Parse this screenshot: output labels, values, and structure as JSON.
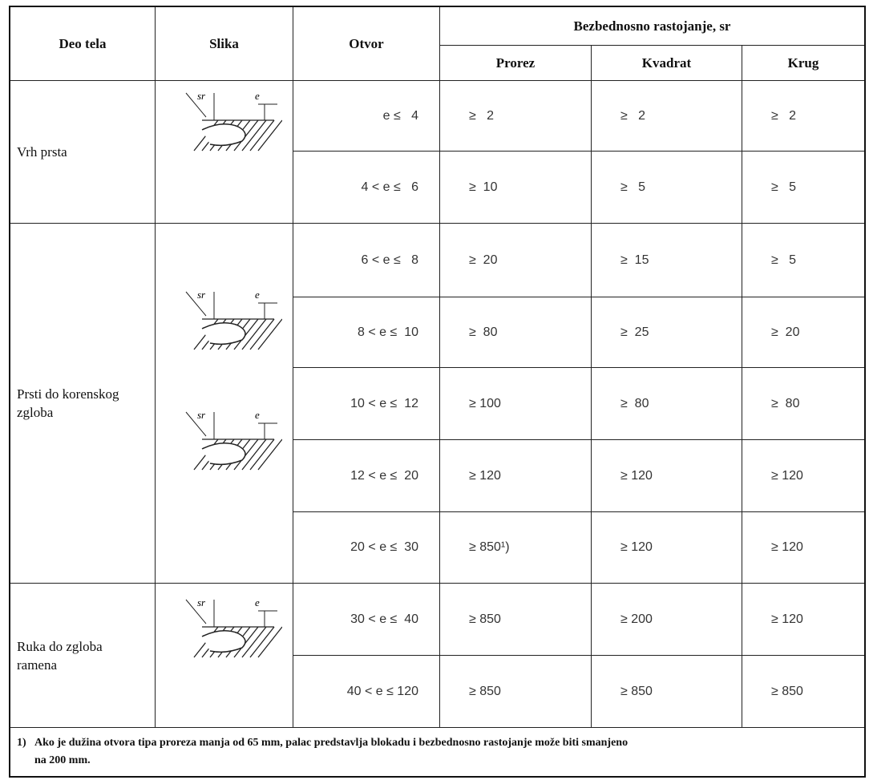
{
  "table": {
    "header": {
      "columns": [
        "Deo tela",
        "Slika",
        "Otvor",
        "Prorez",
        "Kvadrat",
        "Krug"
      ],
      "group": "Bezbednosno rastojanje, sr"
    },
    "figure_labels": {
      "distance": "sr",
      "opening": "e"
    },
    "groups": [
      {
        "body_part": "Vrh prsta",
        "rows": [
          [
            "e ≤   4",
            "≥   2",
            "≥   2",
            "≥   2"
          ],
          [
            "4 < e ≤   6",
            "≥  10",
            "≥   5",
            "≥   5"
          ]
        ]
      },
      {
        "body_part": "Prsti do korenskog zgloba",
        "rows": [
          [
            "6 < e ≤   8",
            "≥  20",
            "≥  15",
            "≥   5"
          ],
          [
            "8 < e ≤  10",
            "≥  80",
            "≥  25",
            "≥  20"
          ],
          [
            "10 < e ≤  12",
            "≥ 100",
            "≥  80",
            "≥  80"
          ],
          [
            "12 < e ≤  20",
            "≥ 120",
            "≥ 120",
            "≥ 120"
          ],
          [
            "20 < e ≤  30",
            "≥ 850¹)",
            "≥ 120",
            "≥ 120"
          ]
        ]
      },
      {
        "body_part": "Ruka do zgloba ramena",
        "rows": [
          [
            "30 < e ≤  40",
            "≥ 850",
            "≥ 200",
            "≥ 120"
          ],
          [
            "40 < e ≤ 120",
            "≥ 850",
            "≥ 850",
            "≥ 850"
          ]
        ]
      }
    ],
    "footnote": {
      "marker": "1)",
      "lines": [
        "Ako je dužina otvora tipa proreza manja od 65 mm, palac predstavlja blokadu i bezbednosno rastojanje može biti smanjeno",
        "na 200 mm."
      ]
    }
  }
}
